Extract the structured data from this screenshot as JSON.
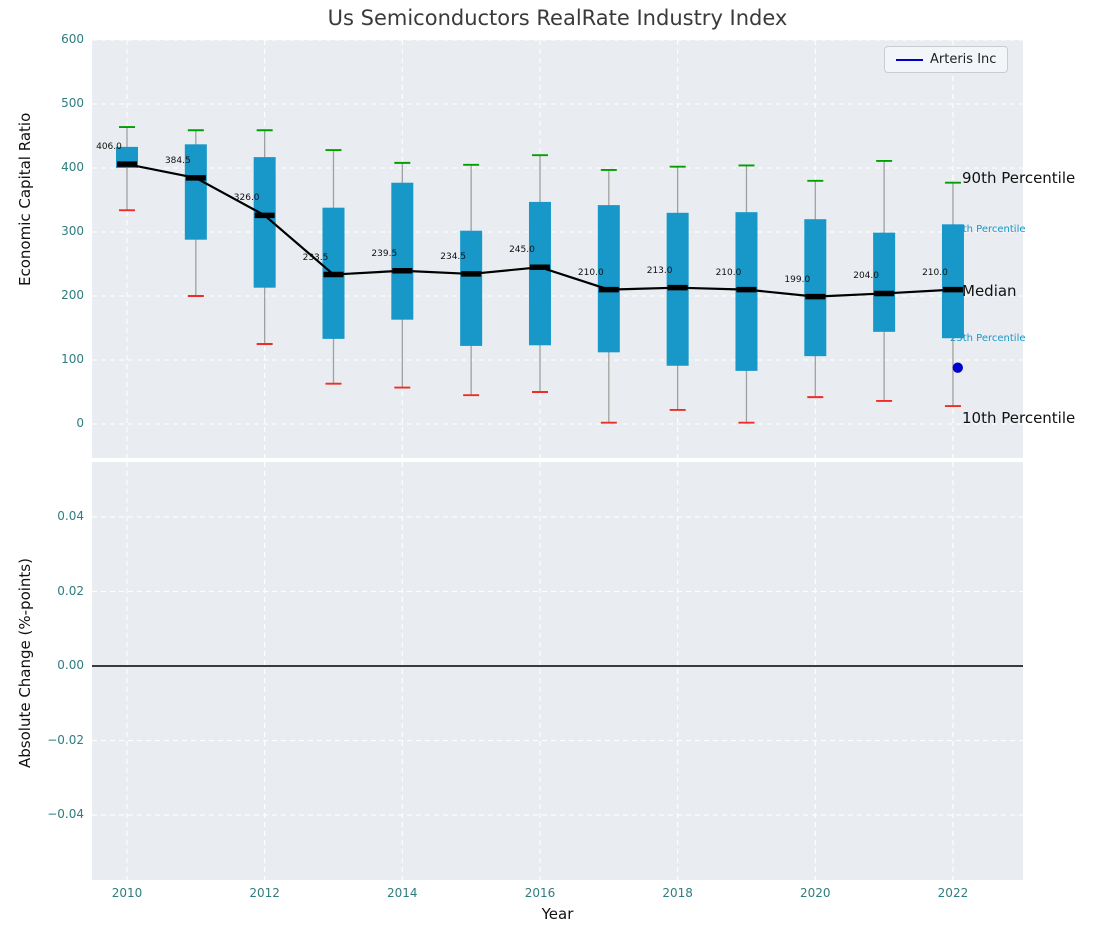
{
  "title": "Us Semiconductors RealRate Industry Index",
  "legend": {
    "label": "Arteris Inc"
  },
  "top_axis": {
    "ylabel": "Economic Capital Ratio",
    "yticks": [
      0,
      100,
      200,
      300,
      400,
      500,
      600
    ]
  },
  "bottom_axis": {
    "ylabel": "Absolute Change (%-points)",
    "xlabel": "Year",
    "yticks": [
      "0.04",
      "0.02",
      "0.00",
      "−0.02",
      "−0.04"
    ],
    "ytick_values": [
      0.04,
      0.02,
      0.0,
      -0.02,
      -0.04
    ],
    "xticks": [
      2010,
      2012,
      2014,
      2016,
      2018,
      2020,
      2022
    ]
  },
  "annotations": [
    {
      "label": "90th Percentile",
      "size": "large",
      "value": 385
    },
    {
      "label": "75th Percentile",
      "size": "small",
      "value": 303
    },
    {
      "label": "Median",
      "size": "large",
      "value": 208
    },
    {
      "label": "25th Percentile",
      "size": "small",
      "value": 133
    },
    {
      "label": "10th Percentile",
      "size": "large",
      "value": 10
    }
  ],
  "colors": {
    "plot_bg": "#e9edf1",
    "grid": "#ffffff",
    "box": "#1898c8",
    "whisker": "#a0a0a0",
    "p90_cap": "#00a000",
    "p10_cap": "#ef2d24",
    "median_line": "#000000",
    "arteris": "#0000cc",
    "tick_label": "#2e7d7f"
  },
  "chart_data": [
    {
      "type": "boxplot",
      "title": "Us Semiconductors RealRate Industry Index",
      "xlabel": "Year",
      "ylabel": "Economic Capital Ratio",
      "ylim": [
        -55,
        615
      ],
      "xlim": [
        2009.5,
        2023
      ],
      "grid": true,
      "legend_position": "upper right",
      "legend_entries": [
        "Arteris Inc"
      ],
      "x": [
        2010,
        2011,
        2012,
        2013,
        2014,
        2015,
        2016,
        2017,
        2018,
        2019,
        2020,
        2021,
        2022
      ],
      "series": {
        "median": [
          406,
          384.5,
          326,
          233.5,
          239.5,
          234.5,
          245,
          210,
          213,
          210,
          199,
          204,
          210
        ],
        "p75": [
          433,
          437,
          417,
          338,
          377,
          302,
          347,
          342,
          330,
          331,
          320,
          299,
          312
        ],
        "p25": [
          400,
          288,
          213,
          133,
          163,
          122,
          123,
          112,
          91,
          83,
          106,
          144,
          134
        ],
        "p90": [
          464,
          459,
          459,
          428,
          408,
          405,
          420,
          397,
          402,
          404,
          380,
          411,
          377
        ],
        "p10": [
          334,
          200,
          125,
          63,
          57,
          45,
          50,
          2,
          22,
          2,
          42,
          36,
          28
        ]
      },
      "median_labels": [
        "406.0",
        "384.5",
        "326.0",
        "233.5",
        "239.5",
        "234.5",
        "245.0",
        "210.0",
        "213.0",
        "210.0",
        "199.0",
        "204.0",
        "210.0"
      ],
      "point": {
        "name": "Arteris Inc",
        "x": 2022.07,
        "y": 88
      }
    },
    {
      "type": "line",
      "xlabel": "Year",
      "ylabel": "Absolute Change (%-points)",
      "ylim": [
        -0.055,
        0.055
      ],
      "grid": true,
      "zero_line": 0.0,
      "series": []
    }
  ]
}
